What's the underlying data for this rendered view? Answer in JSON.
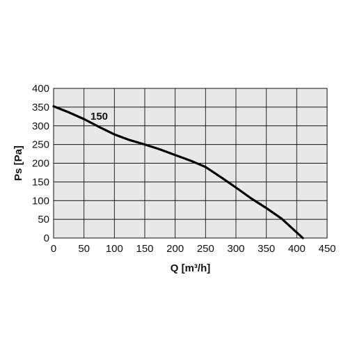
{
  "chart_data": {
    "type": "line",
    "title": "",
    "xlabel": "Q [m³/h]",
    "ylabel": "Ps [Pa]",
    "xlim": [
      0,
      450
    ],
    "ylim": [
      0,
      400
    ],
    "xticks": [
      0,
      50,
      100,
      150,
      200,
      250,
      300,
      350,
      400,
      450
    ],
    "yticks": [
      0,
      50,
      100,
      150,
      200,
      250,
      300,
      350,
      400
    ],
    "grid": true,
    "plot_background": "#e8e8e8",
    "grid_color": "#111111",
    "line_color": "#000000",
    "series": [
      {
        "name": "150",
        "x": [
          0,
          25,
          50,
          75,
          100,
          125,
          150,
          175,
          200,
          225,
          250,
          275,
          300,
          325,
          350,
          375,
          400,
          410
        ],
        "y": [
          352,
          336,
          318,
          297,
          277,
          262,
          250,
          237,
          222,
          207,
          190,
          163,
          135,
          106,
          80,
          52,
          15,
          0
        ]
      }
    ]
  }
}
